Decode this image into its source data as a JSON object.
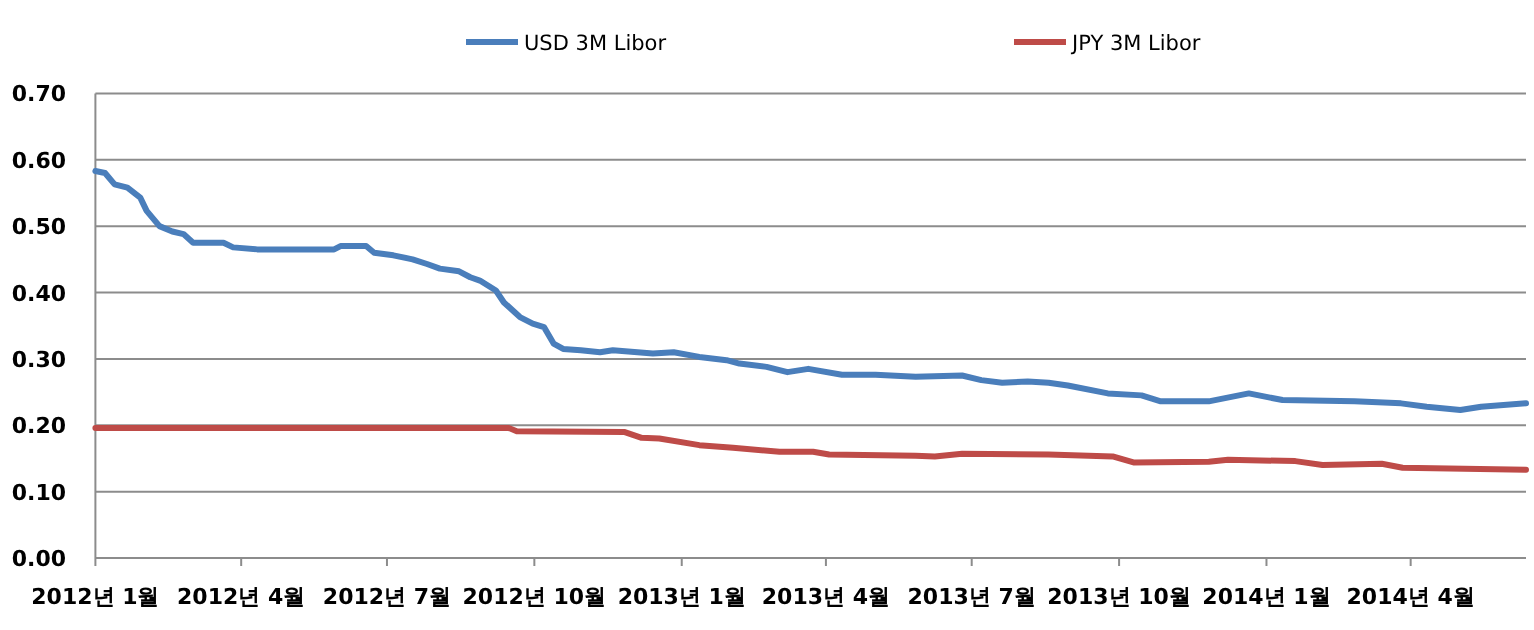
{
  "chart_data": {
    "type": "line",
    "legend": "top",
    "grid": "y",
    "line_style": "solid",
    "marker": "none",
    "xlim": [
      "2012-01-01",
      "2014-06-12"
    ],
    "xticks": [
      {
        "value": "2012-01-01",
        "label": "2012년 1월"
      },
      {
        "value": "2012-04-01",
        "label": "2012년 4월"
      },
      {
        "value": "2012-07-01",
        "label": "2012년 7월"
      },
      {
        "value": "2012-10-01",
        "label": "2012년 10월"
      },
      {
        "value": "2013-01-01",
        "label": "2013년 1월"
      },
      {
        "value": "2013-04-01",
        "label": "2013년 4월"
      },
      {
        "value": "2013-07-01",
        "label": "2013년 7월"
      },
      {
        "value": "2013-10-01",
        "label": "2013년 10월"
      },
      {
        "value": "2014-01-01",
        "label": "2014년 1월"
      },
      {
        "value": "2014-04-01",
        "label": "2014년 4월"
      }
    ],
    "ylim": [
      0,
      0.7
    ],
    "yticks": [
      {
        "value": 0,
        "label": "0.00"
      },
      {
        "value": 0.1,
        "label": "0.10"
      },
      {
        "value": 0.2,
        "label": "0.20"
      },
      {
        "value": 0.3,
        "label": "0.30"
      },
      {
        "value": 0.4,
        "label": "0.40"
      },
      {
        "value": 0.5,
        "label": "0.50"
      },
      {
        "value": 0.6,
        "label": "0.60"
      },
      {
        "value": 0.7,
        "label": "0.70"
      }
    ],
    "series": [
      {
        "name": "USD 3M Libor",
        "color": "#4a7ebb",
        "x": [
          "2012-01-01",
          "2012-01-07",
          "2012-01-13",
          "2012-01-21",
          "2012-01-29",
          "2012-02-02",
          "2012-02-10",
          "2012-02-18",
          "2012-02-25",
          "2012-03-02",
          "2012-03-21",
          "2012-03-27",
          "2012-04-11",
          "2012-05-29",
          "2012-06-02",
          "2012-06-18",
          "2012-06-23",
          "2012-07-05",
          "2012-07-17",
          "2012-07-26",
          "2012-08-03",
          "2012-08-15",
          "2012-08-22",
          "2012-08-28",
          "2012-09-07",
          "2012-09-12",
          "2012-09-22",
          "2012-09-30",
          "2012-10-07",
          "2012-10-13",
          "2012-10-19",
          "2012-10-30",
          "2012-11-11",
          "2012-11-19",
          "2012-12-14",
          "2012-12-27",
          "2013-01-12",
          "2013-01-29",
          "2013-02-06",
          "2013-02-23",
          "2013-03-08",
          "2013-03-21",
          "2013-04-11",
          "2013-05-02",
          "2013-05-27",
          "2013-06-25",
          "2013-07-07",
          "2013-07-20",
          "2013-08-05",
          "2013-08-18",
          "2013-08-30",
          "2013-09-24",
          "2013-10-15",
          "2013-10-27",
          "2013-11-26",
          "2013-12-21",
          "2014-01-11",
          "2014-02-25",
          "2014-03-26",
          "2014-04-11",
          "2014-05-02",
          "2014-05-15",
          "2014-06-12"
        ],
        "values": [
          0.583,
          0.58,
          0.563,
          0.558,
          0.543,
          0.523,
          0.5,
          0.492,
          0.488,
          0.475,
          0.475,
          0.468,
          0.465,
          0.465,
          0.47,
          0.47,
          0.46,
          0.456,
          0.45,
          0.443,
          0.436,
          0.432,
          0.423,
          0.418,
          0.403,
          0.385,
          0.363,
          0.353,
          0.348,
          0.323,
          0.315,
          0.313,
          0.31,
          0.313,
          0.308,
          0.31,
          0.303,
          0.298,
          0.293,
          0.288,
          0.28,
          0.285,
          0.276,
          0.276,
          0.273,
          0.275,
          0.268,
          0.264,
          0.266,
          0.264,
          0.26,
          0.248,
          0.245,
          0.236,
          0.236,
          0.248,
          0.238,
          0.236,
          0.233,
          0.228,
          0.223,
          0.228,
          0.233
        ]
      },
      {
        "name": "JPY 3M Libor",
        "color": "#be4b48",
        "x": [
          "2012-01-01",
          "2012-08-15",
          "2012-09-15",
          "2012-09-20",
          "2012-11-26",
          "2012-12-07",
          "2012-12-18",
          "2013-01-12",
          "2013-02-02",
          "2013-03-03",
          "2013-03-24",
          "2013-04-03",
          "2013-05-27",
          "2013-06-08",
          "2013-06-25",
          "2013-08-18",
          "2013-09-27",
          "2013-10-10",
          "2013-11-26",
          "2013-12-08",
          "2014-01-19",
          "2014-02-05",
          "2014-03-14",
          "2014-03-27",
          "2014-06-12"
        ],
        "values": [
          0.196,
          0.196,
          0.196,
          0.191,
          0.19,
          0.181,
          0.18,
          0.17,
          0.166,
          0.16,
          0.16,
          0.156,
          0.154,
          0.153,
          0.157,
          0.156,
          0.153,
          0.144,
          0.145,
          0.148,
          0.146,
          0.14,
          0.142,
          0.136,
          0.133
        ]
      }
    ]
  }
}
